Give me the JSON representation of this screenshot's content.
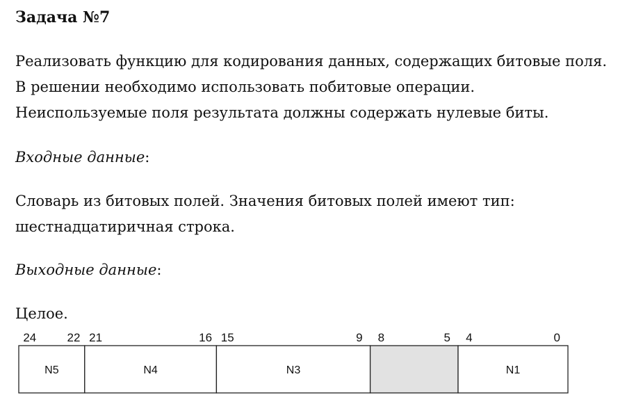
{
  "title": "Задача №7",
  "description": [
    "Реализовать функцию для кодирования данных, содержащих битовые поля.",
    "В решении необходимо использовать побитовые операции.",
    "Неиспользуемые поля результата должны содержать нулевые биты."
  ],
  "input": {
    "heading": "Входные данные",
    "heading_suffix": ":",
    "body": [
      "Словарь из битовых полей. Значения битовых полей имеют тип:",
      "шестнадцатиричная строка."
    ]
  },
  "output": {
    "heading": "Выходные данные",
    "heading_suffix": ":",
    "body": [
      "Целое."
    ]
  },
  "bit_layout": {
    "total_high": 24,
    "total_low": 0,
    "fields": [
      {
        "name": "N5",
        "high": 24,
        "low": 22,
        "unused": false
      },
      {
        "name": "N4",
        "high": 21,
        "low": 16,
        "unused": false
      },
      {
        "name": "N3",
        "high": 15,
        "low": 9,
        "unused": false
      },
      {
        "name": "",
        "high": 8,
        "low": 5,
        "unused": true
      },
      {
        "name": "N1",
        "high": 4,
        "low": 0,
        "unused": false
      }
    ],
    "colors": {
      "border": "#222222",
      "unused_fill": "#e2e2e2",
      "field_fill": "#ffffff"
    }
  }
}
